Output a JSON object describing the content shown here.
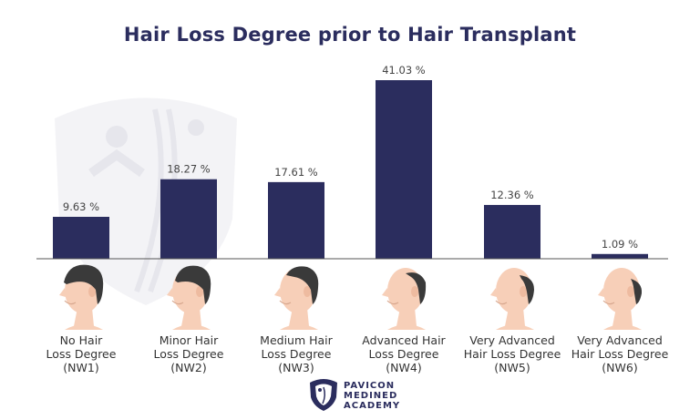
{
  "title": "Hair Loss Degree prior to Hair Transplant",
  "colors": {
    "bar": "#2b2d5e",
    "baseline": "#555555",
    "skin": "#f7cfb8",
    "hair": "#3a3a3a"
  },
  "chart_data": {
    "type": "bar",
    "title": "Hair Loss Degree prior to Hair Transplant",
    "xlabel": "",
    "ylabel": "",
    "ylim": [
      0,
      45
    ],
    "grid": false,
    "legend": "none",
    "categories": [
      {
        "lines": [
          "No Hair",
          "Loss Degree",
          "(NW1)"
        ]
      },
      {
        "lines": [
          "Minor Hair",
          "Loss Degree",
          "(NW2)"
        ]
      },
      {
        "lines": [
          "Medium Hair",
          "Loss Degree",
          "(NW3)"
        ]
      },
      {
        "lines": [
          "Advanced Hair",
          "Loss Degree",
          "(NW4)"
        ]
      },
      {
        "lines": [
          "Very Advanced",
          "Hair Loss Degree",
          "(NW5)"
        ]
      },
      {
        "lines": [
          "Very Advanced",
          "Hair Loss Degree",
          "(NW6)"
        ]
      }
    ],
    "values": [
      9.63,
      18.27,
      17.61,
      41.03,
      12.36,
      1.09
    ],
    "value_labels": [
      "9.63 %",
      "18.27 %",
      "17.61 %",
      "41.03 %",
      "12.36 %",
      "1.09 %"
    ]
  },
  "logo": {
    "icon": "shield-crest-icon",
    "line1": "PAVICON",
    "line2": "MEDINED",
    "line3": "ACADEMY"
  }
}
